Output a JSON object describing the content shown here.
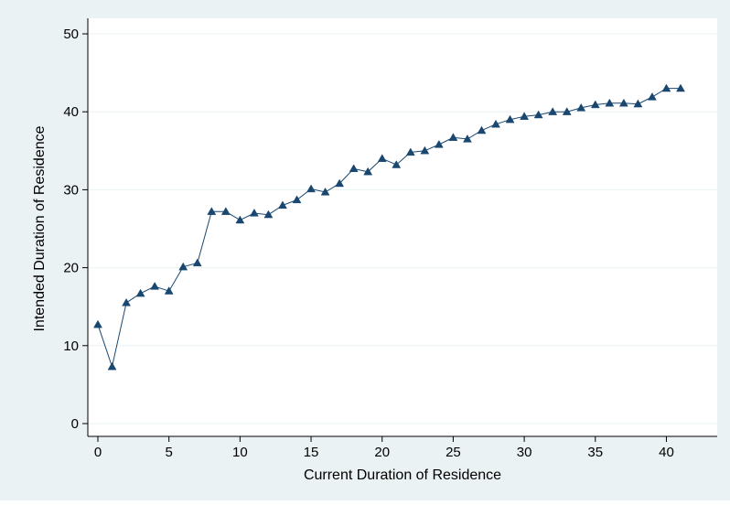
{
  "chart_data": {
    "type": "line",
    "xlabel": "Current Duration of Residence",
    "ylabel": "Intended Duration of Residence",
    "xlim": [
      0,
      41
    ],
    "ylim": [
      0,
      50
    ],
    "xticks": [
      0,
      5,
      10,
      15,
      20,
      25,
      30,
      35,
      40
    ],
    "yticks": [
      0,
      10,
      20,
      30,
      40,
      50
    ],
    "grid": true,
    "marker": "triangle",
    "colors": {
      "outer_background": "#eaf2f3",
      "plot_background": "#ffffff",
      "grid": "#eaf2f3",
      "series": "#1a476f"
    },
    "series": [
      {
        "x": [
          0,
          1,
          2,
          3,
          4,
          5,
          6,
          7,
          8,
          9,
          10,
          11,
          12,
          13,
          14,
          15,
          16,
          17,
          18,
          19,
          20,
          21,
          22,
          23,
          24,
          25,
          26,
          27,
          28,
          29,
          30,
          31,
          32,
          33,
          34,
          35,
          36,
          37,
          38,
          39,
          40,
          41
        ],
        "y": [
          12.7,
          7.3,
          15.5,
          16.7,
          17.6,
          17.0,
          20.1,
          20.6,
          27.2,
          27.2,
          26.1,
          27.0,
          26.8,
          28.0,
          28.7,
          30.1,
          29.7,
          30.8,
          32.7,
          32.3,
          34.0,
          33.2,
          34.8,
          35.0,
          35.8,
          36.7,
          36.5,
          37.6,
          38.4,
          39.0,
          39.4,
          39.6,
          40.0,
          40.0,
          40.5,
          40.9,
          41.1,
          41.1,
          41.0,
          41.9,
          43.0,
          43.0
        ]
      }
    ]
  }
}
